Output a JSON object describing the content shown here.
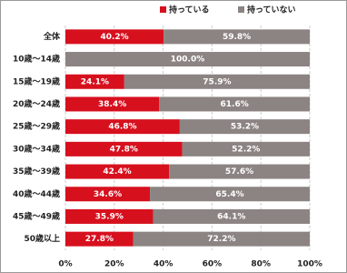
{
  "chart_data": {
    "type": "stacked-bar-horizontal",
    "categories": [
      "全体",
      "10歳～14歳",
      "15歳～19歳",
      "20歳～24歳",
      "25歳～29歳",
      "30歳～34歳",
      "35歳～39歳",
      "40歳～44歳",
      "45歳～49歳",
      "50歳以上"
    ],
    "series": [
      {
        "name": "持っている",
        "color": "#d7101e",
        "values": [
          40.2,
          0,
          24.1,
          38.4,
          46.8,
          47.8,
          42.4,
          34.6,
          35.9,
          27.8
        ],
        "value_labels": [
          "40.2%",
          null,
          "24.1%",
          "38.4%",
          "46.8%",
          "47.8%",
          "42.4%",
          "34.6%",
          "35.9%",
          "27.8%"
        ]
      },
      {
        "name": "持っていない",
        "color": "#8c8482",
        "values": [
          59.8,
          100.0,
          75.9,
          61.6,
          53.2,
          52.2,
          57.6,
          65.4,
          64.1,
          72.2
        ],
        "value_labels": [
          "59.8%",
          "100.0%",
          "75.9%",
          "61.6%",
          "53.2%",
          "52.2%",
          "57.6%",
          "65.4%",
          "64.1%",
          "72.2%"
        ]
      }
    ],
    "xlim": [
      0,
      100
    ],
    "xticks": [
      {
        "value": 0,
        "label": "0%"
      },
      {
        "value": 20,
        "label": "20%"
      },
      {
        "value": 40,
        "label": "40%"
      },
      {
        "value": 60,
        "label": "60%"
      },
      {
        "value": 80,
        "label": "80%"
      },
      {
        "value": 100,
        "label": "100%"
      }
    ],
    "grid": true
  }
}
